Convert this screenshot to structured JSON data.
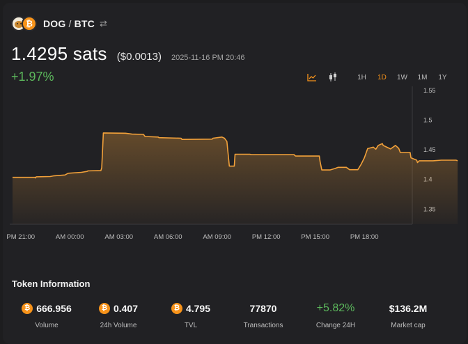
{
  "header": {
    "base_token": "DOG",
    "separator": "/",
    "quote_token": "BTC",
    "swap_icon": "⇄"
  },
  "price": {
    "value": "1.4295 sats",
    "usd": "($0.0013)",
    "timestamp": "2025-11-16 PM 20:46",
    "change": "+1.97%"
  },
  "toolbar": {
    "chart_icons": [
      "line-chart-icon",
      "candlestick-icon"
    ],
    "timeframes": [
      "1H",
      "1D",
      "1W",
      "1M",
      "1Y"
    ],
    "active_timeframe": "1D"
  },
  "colors": {
    "accent": "#f7931a",
    "line": "#f2a13a",
    "positive": "#5cb85c",
    "background": "#212124"
  },
  "chart_data": {
    "type": "area",
    "y_ticks": [
      "1.55",
      "1.5",
      "1.45",
      "1.4",
      "1.35"
    ],
    "ylim": [
      1.3245,
      1.55
    ],
    "x_ticks": [
      "PM 21:00",
      "AM 00:00",
      "AM 03:00",
      "AM 06:00",
      "AM 09:00",
      "PM 12:00",
      "PM 15:00",
      "PM 18:00"
    ],
    "x_tick_hours": [
      0,
      3,
      6,
      9,
      12,
      15,
      18,
      21
    ],
    "x_range_hours": [
      -0.5,
      23.93
    ],
    "series": [
      {
        "points": [
          [
            -0.5,
            1.4035
          ],
          [
            0.9,
            1.4035
          ],
          [
            0.9,
            1.4025
          ],
          [
            0.95,
            1.4045
          ],
          [
            1.8,
            1.405
          ],
          [
            2.0,
            1.406
          ],
          [
            2.7,
            1.4075
          ],
          [
            2.9,
            1.4105
          ],
          [
            3.7,
            1.412
          ],
          [
            4.05,
            1.4135
          ],
          [
            4.1,
            1.4145
          ],
          [
            4.9,
            1.415
          ],
          [
            4.95,
            1.42
          ],
          [
            5.05,
            1.4785
          ],
          [
            6.4,
            1.478
          ],
          [
            6.8,
            1.4765
          ],
          [
            7.5,
            1.476
          ],
          [
            7.6,
            1.4725
          ],
          [
            8.4,
            1.4715
          ],
          [
            8.45,
            1.4705
          ],
          [
            9.8,
            1.4695
          ],
          [
            9.85,
            1.4675
          ],
          [
            11.7,
            1.468
          ],
          [
            11.75,
            1.4695
          ],
          [
            12.3,
            1.4715
          ],
          [
            12.45,
            1.4695
          ],
          [
            12.6,
            1.464
          ],
          [
            12.75,
            1.4225
          ],
          [
            13.05,
            1.4225
          ],
          [
            13.1,
            1.4425
          ],
          [
            14.0,
            1.4425
          ],
          [
            14.1,
            1.442
          ],
          [
            16.7,
            1.442
          ],
          [
            16.75,
            1.4405
          ],
          [
            16.8,
            1.4395
          ],
          [
            18.25,
            1.4395
          ],
          [
            18.3,
            1.4295
          ],
          [
            18.4,
            1.416
          ],
          [
            18.9,
            1.416
          ],
          [
            19.2,
            1.4185
          ],
          [
            19.4,
            1.4205
          ],
          [
            19.9,
            1.4205
          ],
          [
            20.1,
            1.4165
          ],
          [
            20.6,
            1.4165
          ],
          [
            20.8,
            1.4255
          ],
          [
            21.0,
            1.4365
          ],
          [
            21.2,
            1.452
          ],
          [
            21.55,
            1.4545
          ],
          [
            21.7,
            1.451
          ],
          [
            21.85,
            1.4575
          ],
          [
            22.1,
            1.4605
          ],
          [
            22.15,
            1.4575
          ],
          [
            22.3,
            1.4555
          ],
          [
            22.6,
            1.4515
          ],
          [
            22.9,
            1.4575
          ],
          [
            23.1,
            1.4525
          ],
          [
            23.2,
            1.4455
          ],
          [
            23.8,
            1.4455
          ],
          [
            23.85,
            1.4365
          ],
          [
            24.2,
            1.4325
          ],
          [
            24.25,
            1.4285
          ],
          [
            24.35,
            1.4315
          ],
          [
            25.2,
            1.4315
          ],
          [
            25.7,
            1.4325
          ],
          [
            26.6,
            1.4325
          ],
          [
            26.7,
            1.4315
          ]
        ]
      }
    ]
  },
  "token_info": {
    "title": "Token Information",
    "stats": [
      {
        "value": "666.956",
        "label": "Volume",
        "btc": true
      },
      {
        "value": "0.407",
        "label": "24h Volume",
        "btc": true
      },
      {
        "value": "4.795",
        "label": "TVL",
        "btc": true
      },
      {
        "value": "77870",
        "label": "Transactions",
        "btc": false
      },
      {
        "value": "+5.82%",
        "label": "Change 24H",
        "btc": false,
        "positive": true
      },
      {
        "value": "$136.2M",
        "label": "Market cap",
        "btc": false
      }
    ]
  }
}
